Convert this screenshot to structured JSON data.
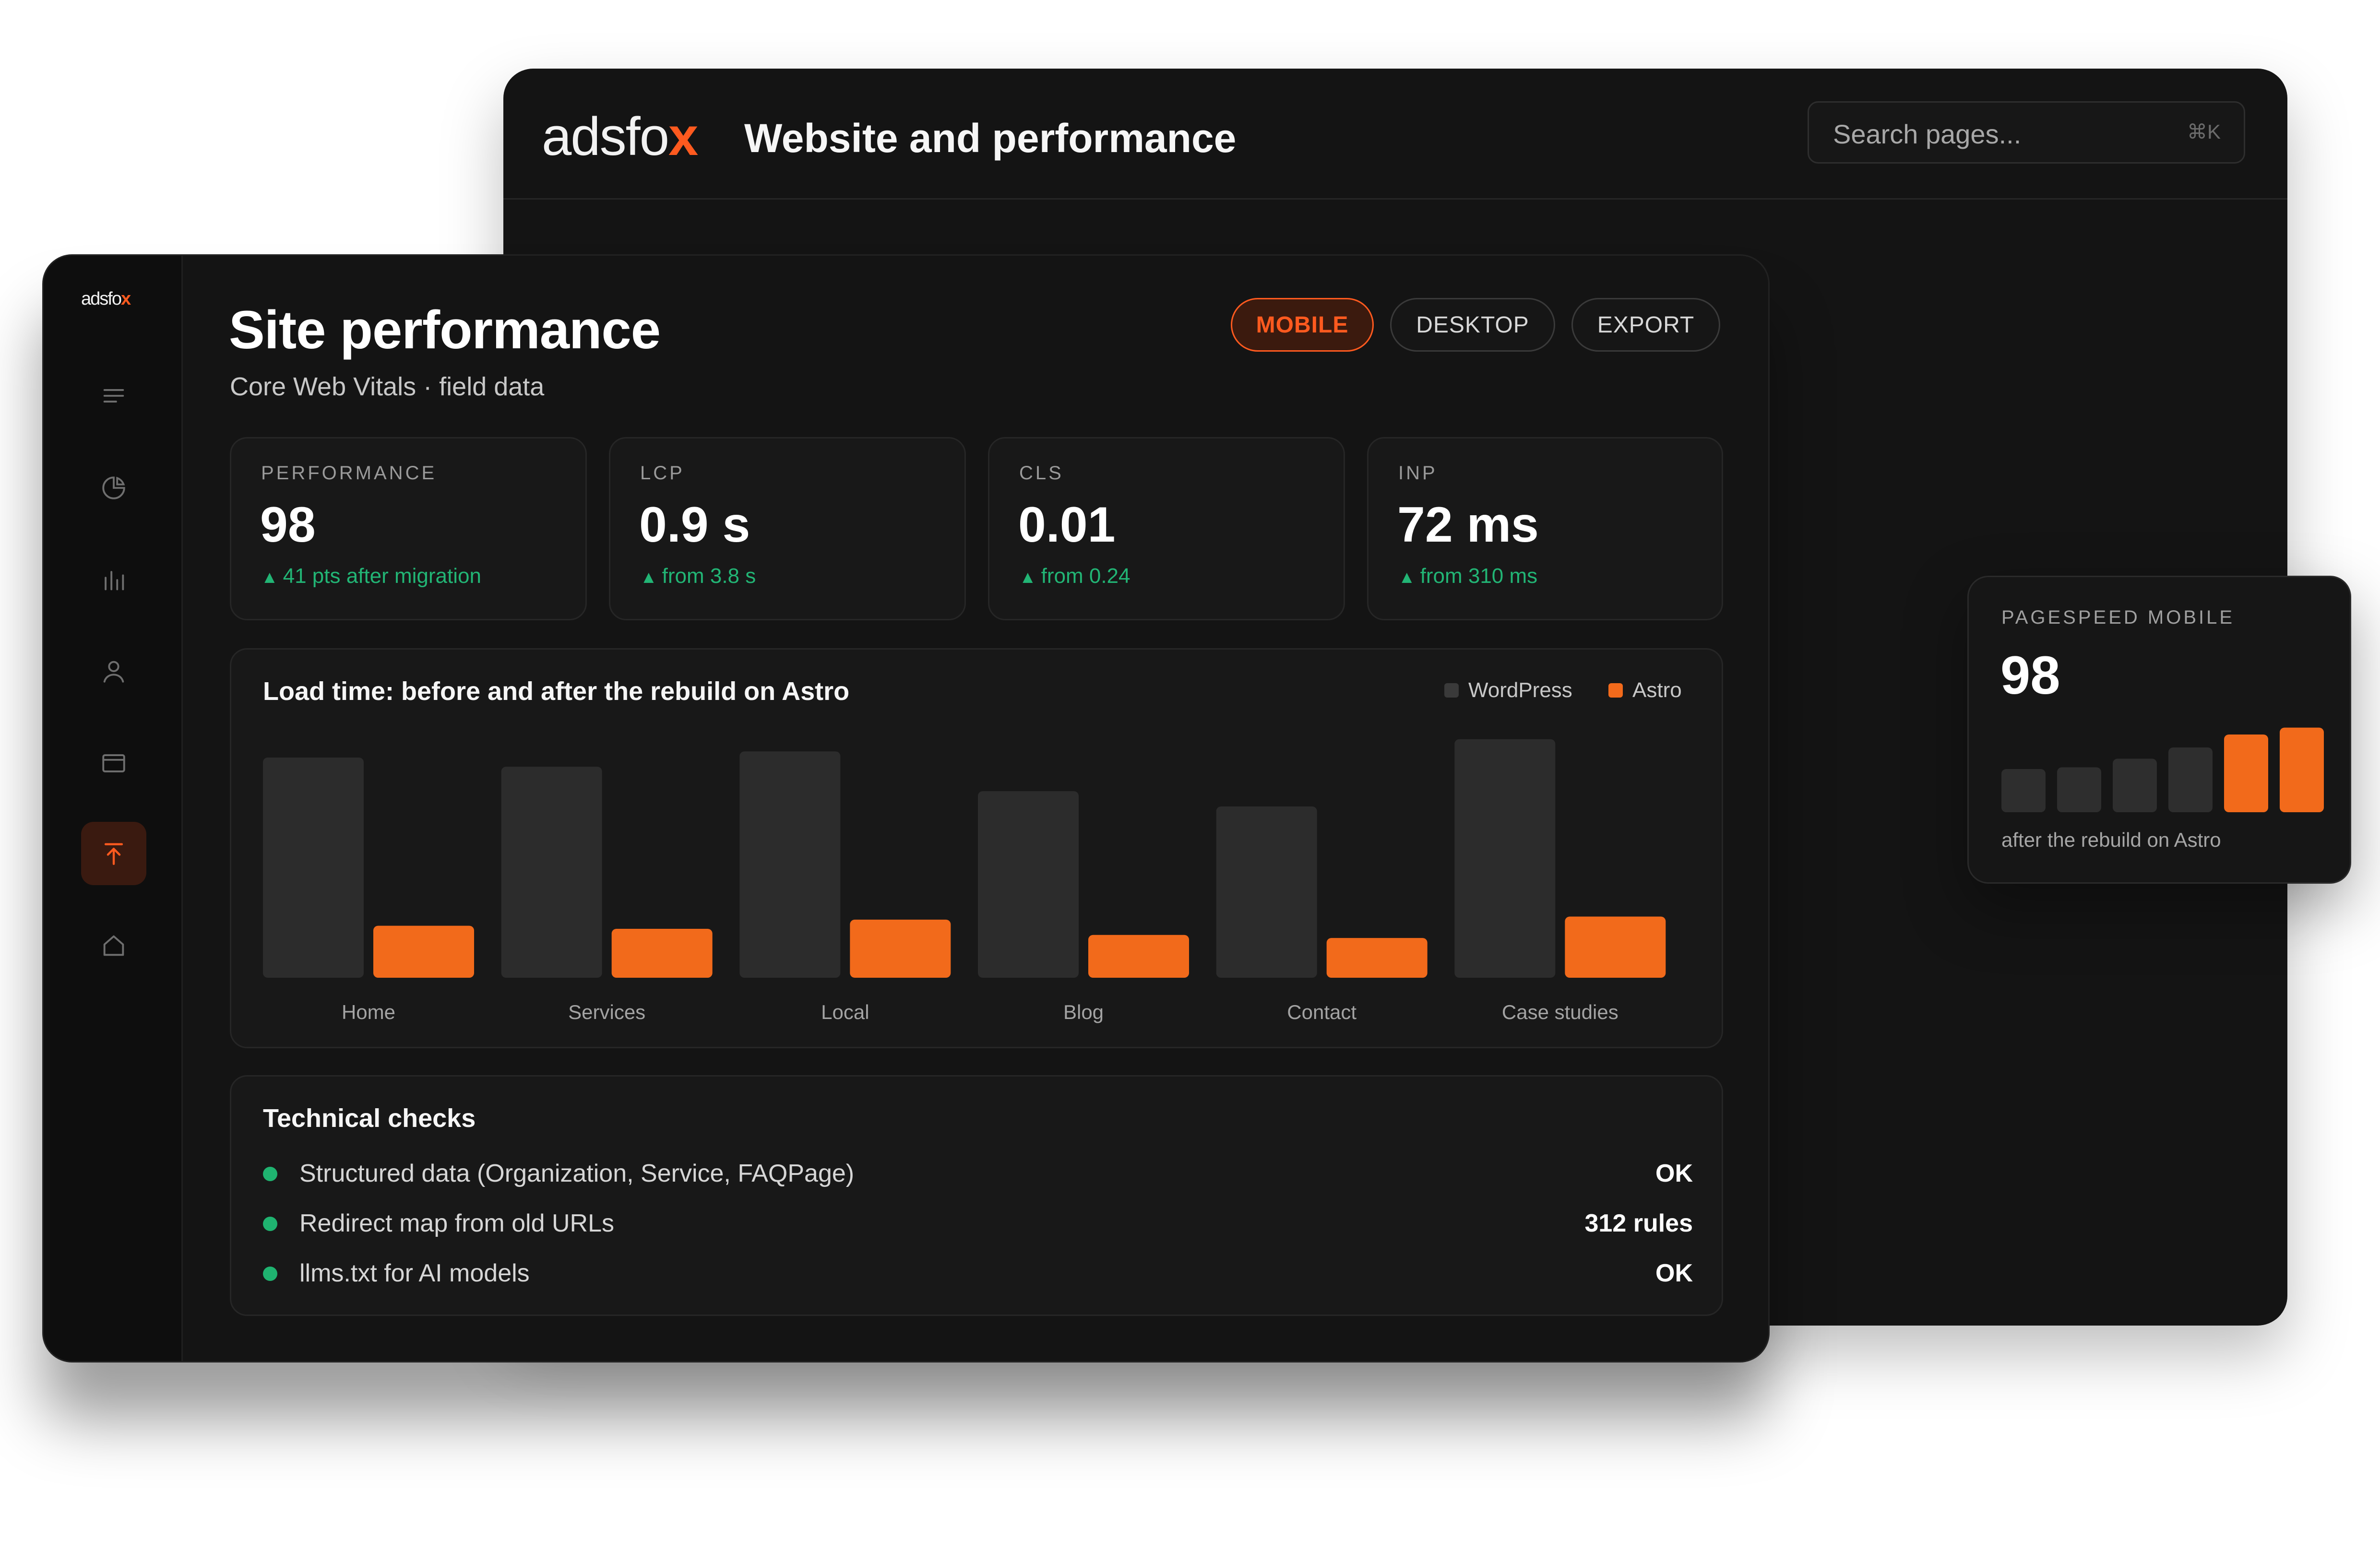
{
  "back_window": {
    "logo_text": "adsfo",
    "logo_mark": "x",
    "title": "Website and performance",
    "search": {
      "placeholder": "Search pages...",
      "shortcut": "⌘K"
    }
  },
  "sidebar": {
    "logo_text": "adsfo",
    "logo_mark": "x",
    "items": [
      {
        "icon": "menu-icon"
      },
      {
        "icon": "pie-chart-icon"
      },
      {
        "icon": "bar-chart-icon"
      },
      {
        "icon": "user-icon"
      },
      {
        "icon": "window-icon"
      },
      {
        "icon": "arrow-up-icon",
        "active": true
      },
      {
        "icon": "home-icon"
      }
    ]
  },
  "header": {
    "title": "Site performance",
    "subtitle": "Core Web Vitals · field data",
    "buttons": [
      {
        "label": "MOBILE",
        "active": true
      },
      {
        "label": "DESKTOP",
        "active": false
      },
      {
        "label": "EXPORT",
        "active": false
      }
    ]
  },
  "metrics": [
    {
      "label": "PERFORMANCE",
      "value": "98",
      "delta_icon": "▲",
      "delta": "41 pts after migration"
    },
    {
      "label": "LCP",
      "value": "0.9 s",
      "delta_icon": "▲",
      "delta": "from 3.8 s"
    },
    {
      "label": "CLS",
      "value": "0.01",
      "delta_icon": "▲",
      "delta": "from 0.24"
    },
    {
      "label": "INP",
      "value": "72 ms",
      "delta_icon": "▲",
      "delta": "from 310 ms"
    }
  ],
  "colors": {
    "accent": "#ff5a1f",
    "wordpress_bar": "#2c2c2c",
    "astro_bar": "#f26a1b",
    "ok_green": "#1fb370"
  },
  "chart_data": {
    "type": "bar",
    "title": "Load time: before and after the rebuild on Astro",
    "categories": [
      "Home",
      "Services",
      "Local",
      "Blog",
      "Contact",
      "Case studies"
    ],
    "series": [
      {
        "name": "WordPress",
        "values": [
          3.6,
          3.45,
          3.7,
          3.05,
          2.8,
          3.9
        ]
      },
      {
        "name": "Astro",
        "values": [
          0.85,
          0.8,
          0.95,
          0.7,
          0.65,
          1.0
        ]
      }
    ],
    "ylim": [
      0,
      4
    ],
    "grid": false,
    "legend": "top-right"
  },
  "checks": {
    "title": "Technical checks",
    "items": [
      {
        "label": "Structured data (Organization, Service, FAQPage)",
        "value": "OK"
      },
      {
        "label": "Redirect map from old URLs",
        "value": "312 rules"
      },
      {
        "label": "llms.txt for AI models",
        "value": "OK"
      }
    ]
  },
  "float_card": {
    "label": "PAGESPEED MOBILE",
    "value": "98",
    "caption": "after the rebuild on Astro",
    "mini_bars": [
      {
        "level": 0.5,
        "highlight": false
      },
      {
        "level": 0.52,
        "highlight": false
      },
      {
        "level": 0.62,
        "highlight": false
      },
      {
        "level": 0.75,
        "highlight": false
      },
      {
        "level": 0.9,
        "highlight": true
      },
      {
        "level": 0.98,
        "highlight": true
      }
    ]
  }
}
